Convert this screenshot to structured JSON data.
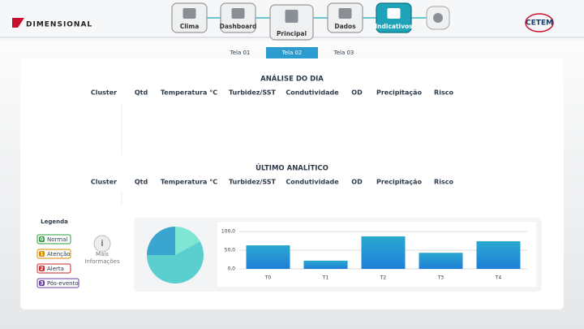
{
  "header": {
    "brand": "DIMENSIONAL",
    "partner": "CETEM",
    "nav": [
      "Clima",
      "Dashboard",
      "Principal",
      "Dados",
      "Indicativos"
    ]
  },
  "tabs": [
    "Tela 01",
    "Tela 02",
    "Tela 03"
  ],
  "analise": {
    "title": "ANÁLISE DO DIA",
    "columns": [
      "Cluster",
      "Qtd",
      "Temperatura °C",
      "Turbidez/SST",
      "Condutividade",
      "OD",
      "Precipitação",
      "Risco"
    ]
  },
  "ultimo": {
    "title": "ÚLTIMO ANALÍTICO",
    "columns": [
      "Cluster",
      "Qtd",
      "Temperatura °C",
      "Turbidez/SST",
      "Condutividade",
      "OD",
      "Precipitação",
      "Risco"
    ]
  },
  "legend": {
    "title": "Legenda",
    "items": [
      {
        "number": "0",
        "label": "Normal",
        "color": "#2e9e3e"
      },
      {
        "number": "1",
        "label": "Atenção",
        "color": "#d98a00"
      },
      {
        "number": "2",
        "label": "Alerta",
        "color": "#c62828"
      },
      {
        "number": "3",
        "label": "Pós-evento",
        "color": "#6a3fa0"
      }
    ]
  },
  "more_info": "Mais Informações",
  "chart_data": [
    {
      "type": "pie",
      "values": [
        17,
        58,
        25
      ],
      "colors": [
        "#7fe6d4",
        "#5bcfd0",
        "#3aa6cf"
      ]
    },
    {
      "type": "bar",
      "categories": [
        "T0",
        "T1",
        "T2",
        "T3",
        "T4"
      ],
      "values": [
        63,
        22,
        87,
        43,
        74
      ],
      "color": "#2a8fd6",
      "ylim": [
        0,
        100
      ],
      "yticks": [
        {
          "value": 0,
          "label": "0,0"
        },
        {
          "value": 50,
          "label": "50,0"
        },
        {
          "value": 100,
          "label": "100,0"
        }
      ],
      "grid": true
    }
  ]
}
